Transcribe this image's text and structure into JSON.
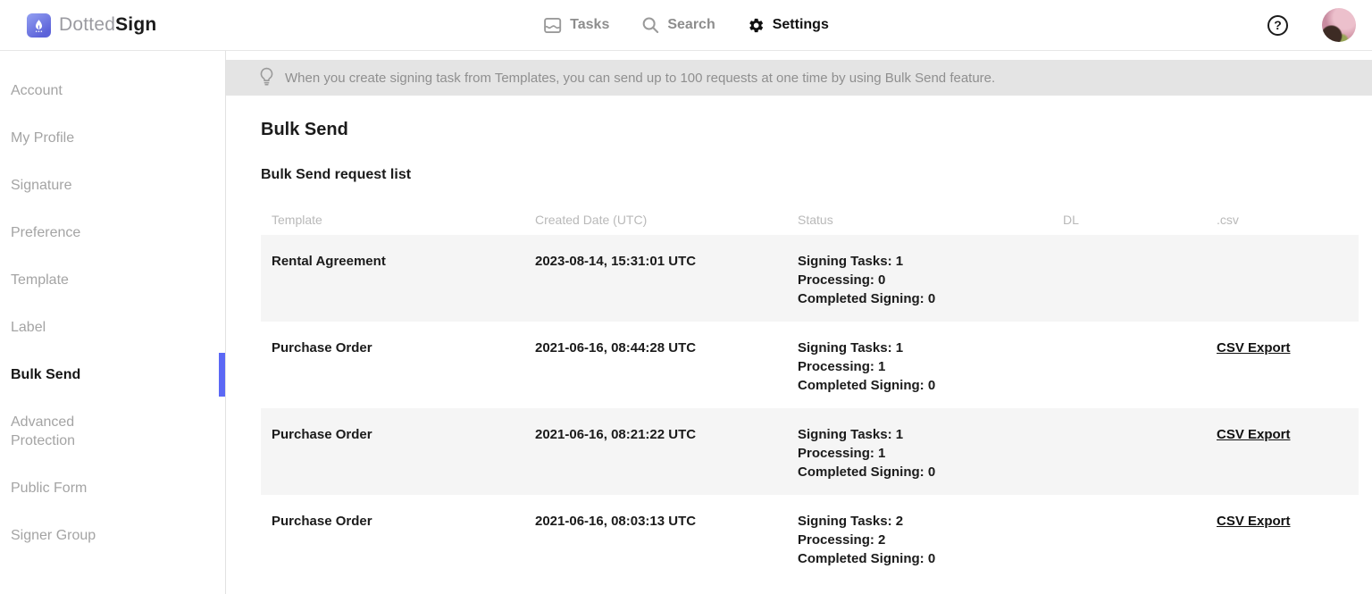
{
  "brand": {
    "name_light": "Dotted",
    "name_bold": "Sign"
  },
  "topnav": {
    "tasks": "Tasks",
    "search": "Search",
    "settings": "Settings"
  },
  "top_right": {
    "help_glyph": "?"
  },
  "sidebar": {
    "items": [
      {
        "label": "Account",
        "active": false
      },
      {
        "label": "My Profile",
        "active": false
      },
      {
        "label": "Signature",
        "active": false
      },
      {
        "label": "Preference",
        "active": false
      },
      {
        "label": "Template",
        "active": false
      },
      {
        "label": "Label",
        "active": false
      },
      {
        "label": "Bulk Send",
        "active": true
      },
      {
        "label": "Advanced Protection",
        "active": false
      },
      {
        "label": "Public Form",
        "active": false
      },
      {
        "label": "Signer Group",
        "active": false
      }
    ]
  },
  "banner": {
    "text": "When you create signing task from Templates, you can send up to 100 requests at one time by using Bulk Send feature."
  },
  "main": {
    "title": "Bulk Send",
    "subtitle": "Bulk Send request list"
  },
  "table": {
    "headers": [
      "Template",
      "Created Date (UTC)",
      "Status",
      "DL",
      ".csv"
    ],
    "rows": [
      {
        "template": "Rental Agreement",
        "created": "2023-08-14, 15:31:01 UTC",
        "status": [
          "Signing Tasks: 1",
          "Processing: 0",
          "Completed Signing: 0"
        ],
        "dl": "",
        "csv": ""
      },
      {
        "template": "Purchase Order",
        "created": "2021-06-16, 08:44:28 UTC",
        "status": [
          "Signing Tasks: 1",
          "Processing: 1",
          "Completed Signing: 0"
        ],
        "dl": "",
        "csv": "CSV Export"
      },
      {
        "template": "Purchase Order",
        "created": "2021-06-16, 08:21:22 UTC",
        "status": [
          "Signing Tasks: 1",
          "Processing: 1",
          "Completed Signing: 0"
        ],
        "dl": "",
        "csv": "CSV Export"
      },
      {
        "template": "Purchase Order",
        "created": "2021-06-16, 08:03:13 UTC",
        "status": [
          "Signing Tasks: 2",
          "Processing: 2",
          "Completed Signing: 0"
        ],
        "dl": "",
        "csv": "CSV Export"
      }
    ]
  },
  "colors": {
    "accent": "#5b68f5",
    "banner_bg": "#e4e4e4",
    "row_alt": "#f5f5f5"
  }
}
